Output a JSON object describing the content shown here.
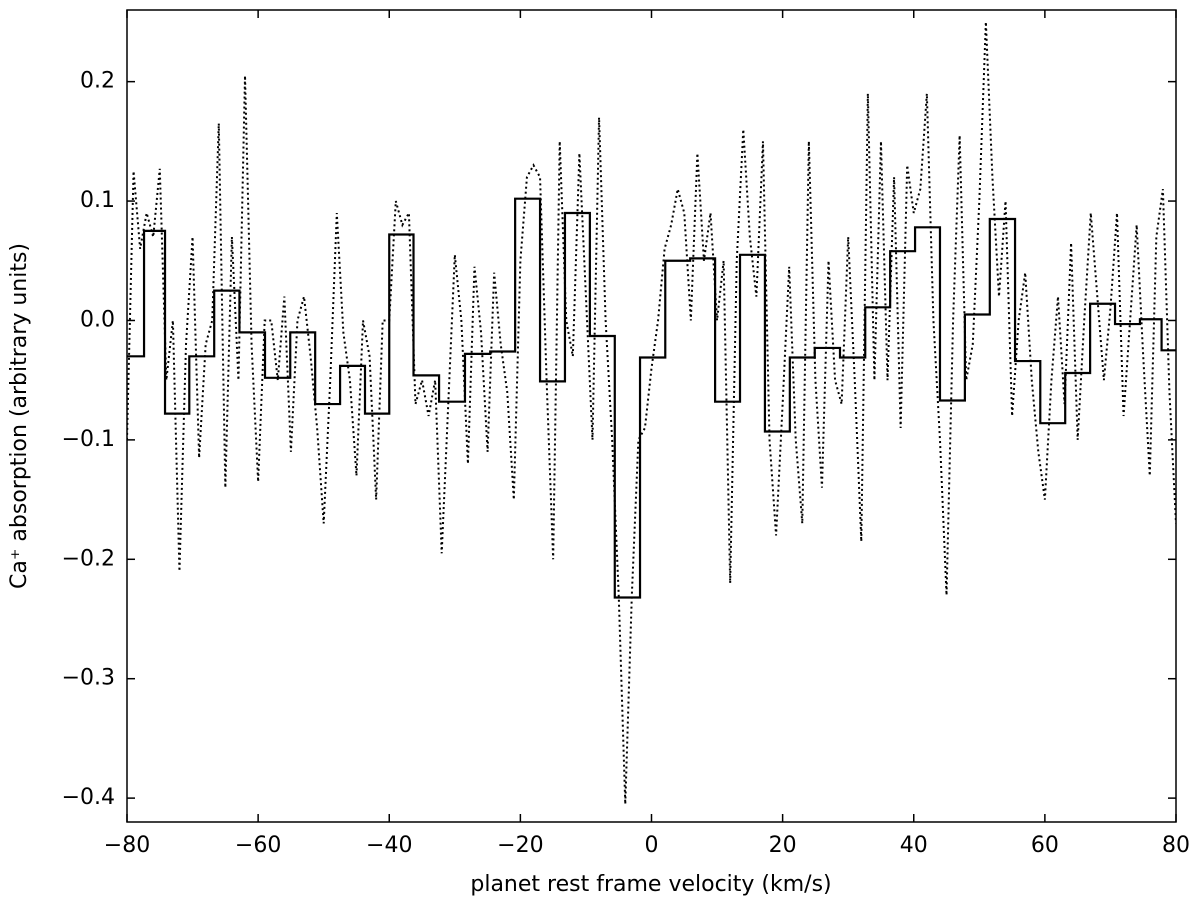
{
  "chart_data": {
    "type": "line",
    "xlabel": "planet rest frame velocity (km/s)",
    "ylabel": "Ca⁺ absorption (arbitrary units)",
    "xlim": [
      -80,
      80
    ],
    "xticks": [
      {
        "value": -80,
        "label": "−80"
      },
      {
        "value": -60,
        "label": "−60"
      },
      {
        "value": -40,
        "label": "−40"
      },
      {
        "value": -20,
        "label": "−20"
      },
      0,
      20,
      40,
      60,
      80
    ],
    "ylim": [
      -0.42,
      0.26
    ],
    "yticks": [
      {
        "value": -0.4,
        "label": "−0.4"
      },
      {
        "value": -0.3,
        "label": "−0.3"
      },
      {
        "value": -0.2,
        "label": "−0.2"
      },
      {
        "value": -0.1,
        "label": "−0.1"
      },
      {
        "value": 0,
        "label": "0.0"
      },
      0.1,
      0.2
    ],
    "series": [
      {
        "color": "#000000",
        "style": "dotted",
        "x": [
          -80,
          -79,
          -78,
          -77,
          -76,
          -75,
          -74,
          -73,
          -72,
          -71,
          -70,
          -69,
          -68,
          -67,
          -66,
          -65,
          -64,
          -63,
          -62,
          -61,
          -60,
          -59,
          -58,
          -57,
          -56,
          -55,
          -54,
          -53,
          -52,
          -51,
          -50,
          -49,
          -48,
          -47,
          -46,
          -45,
          -44,
          -43,
          -42,
          -41,
          -40,
          -39,
          -38,
          -37,
          -36,
          -35,
          -34,
          -33,
          -32,
          -31,
          -30,
          -29,
          -28,
          -27,
          -26,
          -25,
          -24,
          -23,
          -22,
          -21,
          -20,
          -19,
          -18,
          -17,
          -16,
          -15,
          -14,
          -13,
          -12,
          -11,
          -10,
          -9,
          -8,
          -7,
          -6,
          -5,
          -4,
          -3,
          -2,
          -1,
          0,
          1,
          2,
          3,
          4,
          5,
          6,
          7,
          8,
          9,
          10,
          11,
          12,
          13,
          14,
          15,
          16,
          17,
          18,
          19,
          20,
          21,
          22,
          23,
          24,
          25,
          26,
          27,
          28,
          29,
          30,
          31,
          32,
          33,
          34,
          35,
          36,
          37,
          38,
          39,
          40,
          41,
          42,
          43,
          44,
          45,
          46,
          47,
          48,
          49,
          50,
          51,
          52,
          53,
          54,
          55,
          56,
          57,
          58,
          59,
          60,
          61,
          62,
          63,
          64,
          65,
          66,
          67,
          68,
          69,
          70,
          71,
          72,
          73,
          74,
          75,
          76,
          77,
          78,
          79,
          80
        ],
        "values": [
          -0.1,
          0.125,
          0.06,
          0.09,
          0.07,
          0.127,
          -0.05,
          0.0,
          -0.21,
          -0.02,
          0.07,
          -0.115,
          -0.02,
          0.0,
          0.165,
          -0.14,
          0.07,
          -0.05,
          0.205,
          -0.02,
          -0.135,
          0.0,
          0.0,
          -0.05,
          0.02,
          -0.11,
          0.0,
          0.02,
          -0.03,
          -0.09,
          -0.17,
          -0.05,
          0.09,
          -0.01,
          -0.05,
          -0.13,
          0.0,
          -0.03,
          -0.15,
          0.0,
          0.0,
          0.1,
          0.08,
          0.09,
          -0.07,
          -0.05,
          -0.08,
          -0.05,
          -0.195,
          -0.07,
          0.055,
          0.0,
          -0.12,
          0.045,
          -0.01,
          -0.11,
          0.04,
          -0.02,
          -0.06,
          -0.15,
          0.05,
          0.12,
          0.13,
          0.12,
          -0.05,
          -0.2,
          0.15,
          0.0,
          -0.03,
          0.14,
          0.02,
          -0.1,
          0.17,
          0.0,
          -0.1,
          -0.23,
          -0.405,
          -0.23,
          -0.1,
          -0.09,
          -0.04,
          0.0,
          0.06,
          0.08,
          0.11,
          0.09,
          0.0,
          0.14,
          0.05,
          0.09,
          0.0,
          0.05,
          -0.22,
          0.05,
          0.16,
          0.07,
          0.02,
          0.15,
          -0.1,
          -0.18,
          -0.07,
          0.045,
          -0.1,
          -0.17,
          0.15,
          -0.05,
          -0.14,
          0.05,
          -0.05,
          -0.07,
          0.07,
          -0.05,
          -0.185,
          0.19,
          -0.05,
          0.15,
          -0.05,
          0.12,
          -0.09,
          0.13,
          0.09,
          0.11,
          0.19,
          0.0,
          -0.1,
          -0.23,
          0.0,
          0.155,
          -0.05,
          -0.02,
          0.1,
          0.25,
          0.12,
          0.02,
          0.1,
          -0.08,
          0.0,
          0.04,
          -0.05,
          -0.11,
          -0.15,
          -0.05,
          0.02,
          -0.07,
          0.065,
          -0.1,
          0.0,
          0.09,
          0.02,
          -0.05,
          0.01,
          0.09,
          -0.08,
          0.0,
          0.08,
          -0.03,
          -0.13,
          0.07,
          0.11,
          -0.06,
          -0.17
        ]
      },
      {
        "color": "#000000",
        "style": "steps",
        "x": [
          -78.8,
          -76.0,
          -72.4,
          -68.6,
          -64.8,
          -60.9,
          -57.0,
          -53.2,
          -49.4,
          -45.6,
          -41.8,
          -38.2,
          -34.4,
          -30.4,
          -26.5,
          -22.7,
          -18.9,
          -15.1,
          -11.3,
          -7.5,
          -3.7,
          0.2,
          4.0,
          7.8,
          11.6,
          15.4,
          19.2,
          23.0,
          26.8,
          30.7,
          34.5,
          38.3,
          42.1,
          45.9,
          49.7,
          53.5,
          57.4,
          61.2,
          65.0,
          68.8,
          72.6,
          76.4,
          79.2
        ],
        "values": [
          -0.03,
          0.075,
          -0.078,
          -0.03,
          0.025,
          -0.01,
          -0.048,
          -0.01,
          -0.07,
          -0.038,
          -0.078,
          0.072,
          -0.046,
          -0.068,
          -0.028,
          -0.026,
          0.102,
          -0.051,
          0.09,
          -0.013,
          -0.232,
          -0.031,
          0.05,
          0.052,
          -0.068,
          0.055,
          -0.093,
          -0.031,
          -0.023,
          -0.031,
          0.011,
          0.058,
          0.078,
          -0.067,
          0.005,
          0.085,
          -0.034,
          -0.086,
          -0.044,
          0.014,
          -0.003,
          0.001,
          -0.025
        ]
      }
    ]
  }
}
